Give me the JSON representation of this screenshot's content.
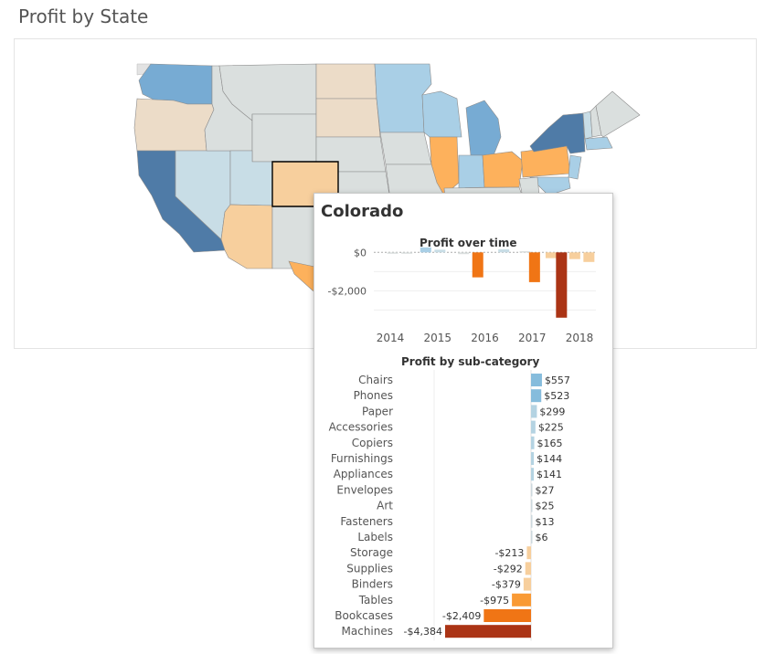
{
  "page": {
    "title": "Profit by State"
  },
  "colors": {
    "strong_pos": "#4f7ba7",
    "pos": "#77abd3",
    "light_pos": "#a9cfe6",
    "pale_pos": "#c8dde6",
    "neutral": "#dadfde",
    "pale_neg": "#ecdcc8",
    "light_neg": "#f7cf9d",
    "neg": "#fdb15c",
    "strong_neg": "#f07515",
    "very_neg": "#ab3415",
    "land_stroke": "#8c8c8c"
  },
  "map": {
    "states": [
      {
        "id": "WA",
        "color": "pos"
      },
      {
        "id": "OR",
        "color": "pale_neg"
      },
      {
        "id": "CA",
        "color": "strong_pos"
      },
      {
        "id": "NV",
        "color": "pale_pos"
      },
      {
        "id": "ID",
        "color": "neutral"
      },
      {
        "id": "MT",
        "color": "neutral"
      },
      {
        "id": "WY",
        "color": "neutral"
      },
      {
        "id": "UT",
        "color": "pale_pos"
      },
      {
        "id": "AZ",
        "color": "light_neg"
      },
      {
        "id": "CO",
        "color": "light_neg",
        "highlight": true
      },
      {
        "id": "NM",
        "color": "neutral"
      },
      {
        "id": "ND",
        "color": "pale_neg"
      },
      {
        "id": "SD",
        "color": "pale_neg"
      },
      {
        "id": "NE",
        "color": "neutral"
      },
      {
        "id": "KS",
        "color": "neutral"
      },
      {
        "id": "OK",
        "color": "neutral"
      },
      {
        "id": "TX",
        "color": "neg"
      },
      {
        "id": "MN",
        "color": "light_pos"
      },
      {
        "id": "IA",
        "color": "neutral"
      },
      {
        "id": "MO",
        "color": "neutral"
      },
      {
        "id": "WI",
        "color": "light_pos"
      },
      {
        "id": "IL",
        "color": "neg"
      },
      {
        "id": "MI",
        "color": "pos"
      },
      {
        "id": "IN",
        "color": "light_pos"
      },
      {
        "id": "OH",
        "color": "neg"
      },
      {
        "id": "KY",
        "color": "neutral"
      },
      {
        "id": "PA",
        "color": "neg"
      },
      {
        "id": "NY",
        "color": "strong_pos"
      },
      {
        "id": "VT",
        "color": "pale_pos"
      },
      {
        "id": "NH",
        "color": "neutral"
      },
      {
        "id": "ME",
        "color": "neutral"
      },
      {
        "id": "MA",
        "color": "light_pos"
      },
      {
        "id": "NJ",
        "color": "light_pos"
      },
      {
        "id": "MD",
        "color": "light_pos"
      },
      {
        "id": "WV",
        "color": "neutral"
      }
    ]
  },
  "tooltip": {
    "title": "Colorado",
    "time_title": "Profit over time",
    "sub_title": "Profit by sub-category"
  },
  "chart_data": [
    {
      "type": "bar",
      "title": "Profit over time",
      "y_ticks": [
        {
          "value": 0,
          "label": "$0"
        },
        {
          "value": -2000,
          "label": "-$2,000"
        }
      ],
      "x_ticks": [
        "2014",
        "2015",
        "2016",
        "2017",
        "2018"
      ],
      "ylim": [
        -3600,
        300
      ],
      "bars": [
        {
          "t": 2014.05,
          "value": -60,
          "color": "neutral"
        },
        {
          "t": 2014.35,
          "value": -40,
          "color": "neutral"
        },
        {
          "t": 2014.75,
          "value": 260,
          "color": "light_pos"
        },
        {
          "t": 2015.05,
          "value": 140,
          "color": "pale_pos"
        },
        {
          "t": 2015.55,
          "value": -90,
          "color": "neutral"
        },
        {
          "t": 2015.85,
          "value": -1300,
          "color": "strong_neg"
        },
        {
          "t": 2016.4,
          "value": 160,
          "color": "pale_pos"
        },
        {
          "t": 2016.85,
          "value": 60,
          "color": "neutral"
        },
        {
          "t": 2017.05,
          "value": -1550,
          "color": "strong_neg"
        },
        {
          "t": 2017.4,
          "value": -300,
          "color": "light_neg"
        },
        {
          "t": 2017.62,
          "value": -3400,
          "color": "very_neg"
        },
        {
          "t": 2017.9,
          "value": -350,
          "color": "light_neg"
        },
        {
          "t": 2018.2,
          "value": -500,
          "color": "light_neg"
        }
      ]
    },
    {
      "type": "bar",
      "title": "Profit by sub-category",
      "categories": [
        "Chairs",
        "Phones",
        "Paper",
        "Accessories",
        "Copiers",
        "Furnishings",
        "Appliances",
        "Envelopes",
        "Art",
        "Fasteners",
        "Labels",
        "Storage",
        "Supplies",
        "Binders",
        "Tables",
        "Bookcases",
        "Machines"
      ],
      "values": [
        557,
        523,
        299,
        225,
        165,
        144,
        141,
        27,
        25,
        13,
        6,
        -213,
        -292,
        -379,
        -975,
        -2409,
        -4384
      ],
      "labels": [
        "$557",
        "$523",
        "$299",
        "$225",
        "$165",
        "$144",
        "$141",
        "$27",
        "$25",
        "$13",
        "$6",
        "-$213",
        "-$292",
        "-$379",
        "-$975",
        "-$2,409",
        "-$4,384"
      ]
    }
  ]
}
